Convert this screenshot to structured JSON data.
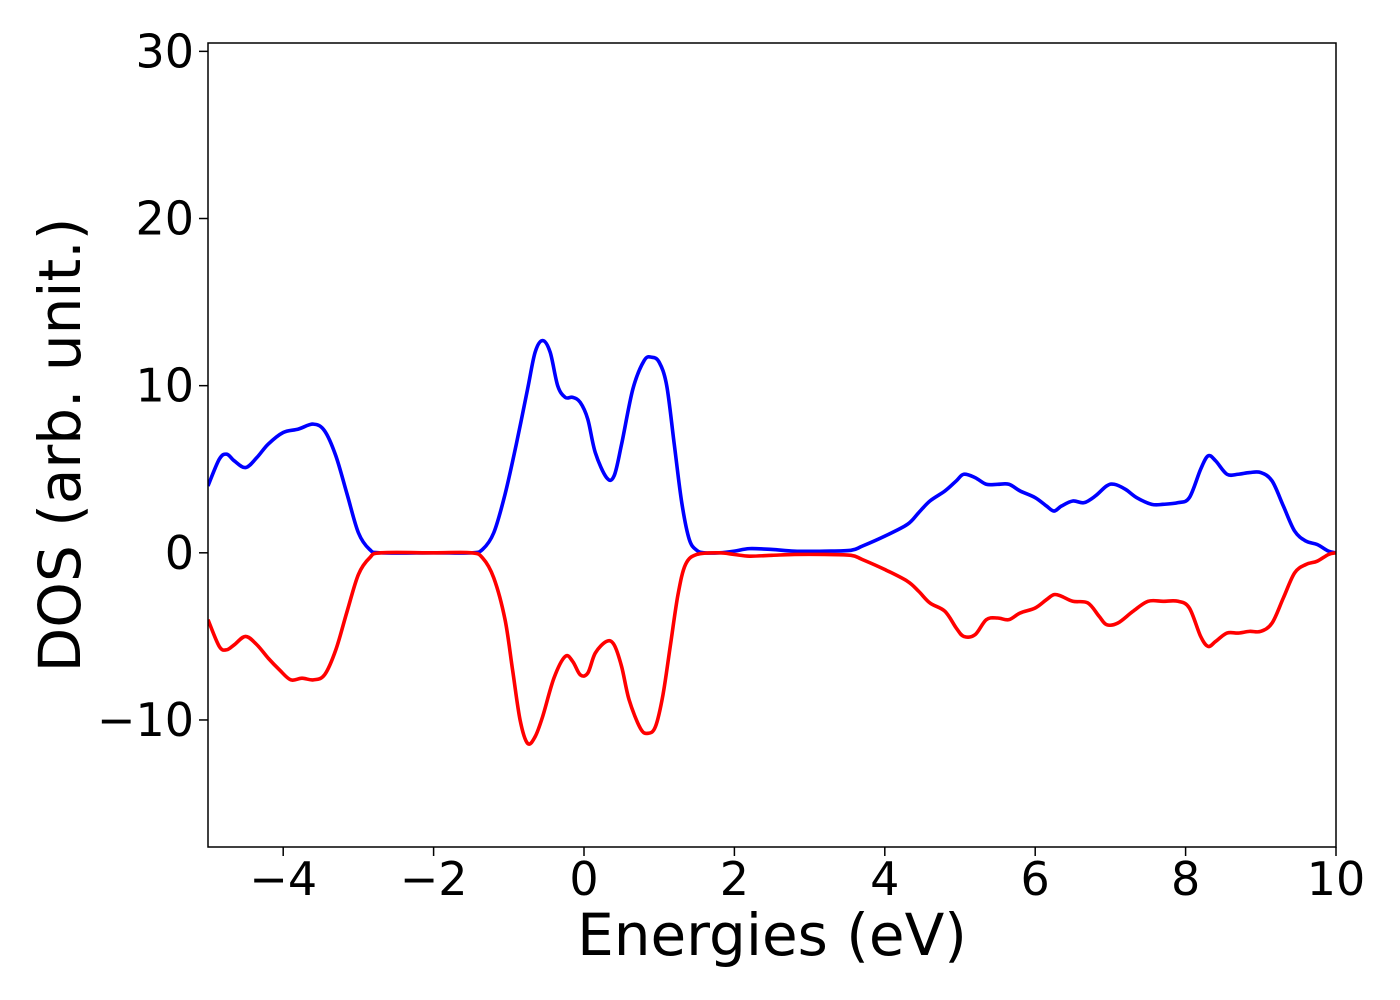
{
  "chart_data": {
    "type": "line",
    "title": "",
    "xlabel": "Energies (eV)",
    "ylabel": "DOS (arb. unit.)",
    "xlim": [
      -5,
      10
    ],
    "ylim": [
      -17.6,
      30.5
    ],
    "xticks": [
      -4,
      -2,
      0,
      2,
      4,
      6,
      8,
      10
    ],
    "xtick_labels": [
      "−4",
      "−2",
      "0",
      "2",
      "4",
      "6",
      "8",
      "10"
    ],
    "yticks": [
      -10,
      0,
      10,
      20,
      30
    ],
    "ytick_labels": [
      "−10",
      "0",
      "10",
      "20",
      "30"
    ],
    "grid": false,
    "legend": "none",
    "series": [
      {
        "color": "#0000ff",
        "points": [
          [
            -5.0,
            4.0
          ],
          [
            -4.85,
            5.6
          ],
          [
            -4.75,
            5.9
          ],
          [
            -4.65,
            5.5
          ],
          [
            -4.5,
            5.1
          ],
          [
            -4.35,
            5.7
          ],
          [
            -4.2,
            6.5
          ],
          [
            -4.0,
            7.2
          ],
          [
            -3.8,
            7.4
          ],
          [
            -3.6,
            7.7
          ],
          [
            -3.45,
            7.3
          ],
          [
            -3.3,
            5.8
          ],
          [
            -3.15,
            3.5
          ],
          [
            -3.0,
            1.2
          ],
          [
            -2.85,
            0.2
          ],
          [
            -2.7,
            0.0
          ],
          [
            -2.0,
            0.0
          ],
          [
            -1.5,
            0.0
          ],
          [
            -1.35,
            0.2
          ],
          [
            -1.2,
            1.2
          ],
          [
            -1.05,
            3.5
          ],
          [
            -0.9,
            6.5
          ],
          [
            -0.75,
            9.8
          ],
          [
            -0.65,
            12.0
          ],
          [
            -0.55,
            12.7
          ],
          [
            -0.45,
            12.0
          ],
          [
            -0.35,
            10.0
          ],
          [
            -0.25,
            9.3
          ],
          [
            -0.15,
            9.3
          ],
          [
            -0.05,
            9.0
          ],
          [
            0.05,
            8.0
          ],
          [
            0.15,
            6.0
          ],
          [
            0.3,
            4.5
          ],
          [
            0.4,
            4.6
          ],
          [
            0.5,
            6.5
          ],
          [
            0.65,
            9.8
          ],
          [
            0.8,
            11.5
          ],
          [
            0.9,
            11.7
          ],
          [
            1.0,
            11.4
          ],
          [
            1.1,
            10.0
          ],
          [
            1.2,
            6.5
          ],
          [
            1.3,
            3.0
          ],
          [
            1.4,
            0.8
          ],
          [
            1.5,
            0.15
          ],
          [
            1.6,
            0.0
          ],
          [
            1.8,
            0.0
          ],
          [
            2.0,
            0.1
          ],
          [
            2.2,
            0.25
          ],
          [
            2.5,
            0.2
          ],
          [
            2.8,
            0.1
          ],
          [
            3.2,
            0.1
          ],
          [
            3.55,
            0.15
          ],
          [
            3.7,
            0.4
          ],
          [
            4.0,
            1.0
          ],
          [
            4.3,
            1.7
          ],
          [
            4.45,
            2.4
          ],
          [
            4.6,
            3.1
          ],
          [
            4.8,
            3.7
          ],
          [
            4.95,
            4.3
          ],
          [
            5.05,
            4.7
          ],
          [
            5.2,
            4.5
          ],
          [
            5.35,
            4.1
          ],
          [
            5.5,
            4.1
          ],
          [
            5.65,
            4.1
          ],
          [
            5.8,
            3.7
          ],
          [
            6.0,
            3.3
          ],
          [
            6.15,
            2.8
          ],
          [
            6.25,
            2.5
          ],
          [
            6.35,
            2.8
          ],
          [
            6.5,
            3.1
          ],
          [
            6.65,
            3.0
          ],
          [
            6.8,
            3.4
          ],
          [
            6.95,
            4.0
          ],
          [
            7.05,
            4.1
          ],
          [
            7.2,
            3.8
          ],
          [
            7.35,
            3.3
          ],
          [
            7.55,
            2.9
          ],
          [
            7.7,
            2.9
          ],
          [
            7.9,
            3.0
          ],
          [
            8.05,
            3.3
          ],
          [
            8.2,
            5.0
          ],
          [
            8.3,
            5.8
          ],
          [
            8.4,
            5.5
          ],
          [
            8.55,
            4.7
          ],
          [
            8.7,
            4.7
          ],
          [
            8.85,
            4.8
          ],
          [
            9.0,
            4.8
          ],
          [
            9.15,
            4.3
          ],
          [
            9.3,
            2.8
          ],
          [
            9.45,
            1.3
          ],
          [
            9.6,
            0.7
          ],
          [
            9.75,
            0.5
          ],
          [
            9.9,
            0.1
          ],
          [
            10.0,
            0.0
          ]
        ]
      },
      {
        "color": "#ff0000",
        "points": [
          [
            -5.0,
            -4.0
          ],
          [
            -4.85,
            -5.6
          ],
          [
            -4.75,
            -5.8
          ],
          [
            -4.65,
            -5.5
          ],
          [
            -4.5,
            -5.0
          ],
          [
            -4.35,
            -5.5
          ],
          [
            -4.2,
            -6.3
          ],
          [
            -4.05,
            -7.0
          ],
          [
            -3.9,
            -7.6
          ],
          [
            -3.75,
            -7.5
          ],
          [
            -3.6,
            -7.6
          ],
          [
            -3.45,
            -7.3
          ],
          [
            -3.3,
            -5.8
          ],
          [
            -3.15,
            -3.5
          ],
          [
            -3.0,
            -1.3
          ],
          [
            -2.85,
            -0.3
          ],
          [
            -2.7,
            0.0
          ],
          [
            -2.0,
            0.0
          ],
          [
            -1.5,
            0.0
          ],
          [
            -1.35,
            -0.3
          ],
          [
            -1.2,
            -1.5
          ],
          [
            -1.05,
            -4.0
          ],
          [
            -0.95,
            -7.0
          ],
          [
            -0.85,
            -10.0
          ],
          [
            -0.75,
            -11.4
          ],
          [
            -0.65,
            -11.0
          ],
          [
            -0.55,
            -9.8
          ],
          [
            -0.4,
            -7.5
          ],
          [
            -0.25,
            -6.2
          ],
          [
            -0.15,
            -6.5
          ],
          [
            -0.05,
            -7.3
          ],
          [
            0.05,
            -7.2
          ],
          [
            0.15,
            -6.0
          ],
          [
            0.3,
            -5.3
          ],
          [
            0.4,
            -5.5
          ],
          [
            0.5,
            -6.8
          ],
          [
            0.6,
            -8.8
          ],
          [
            0.75,
            -10.5
          ],
          [
            0.85,
            -10.8
          ],
          [
            0.95,
            -10.4
          ],
          [
            1.05,
            -8.5
          ],
          [
            1.15,
            -5.5
          ],
          [
            1.25,
            -2.5
          ],
          [
            1.35,
            -0.7
          ],
          [
            1.5,
            -0.1
          ],
          [
            1.8,
            0.0
          ],
          [
            2.0,
            -0.1
          ],
          [
            2.2,
            -0.2
          ],
          [
            2.5,
            -0.15
          ],
          [
            2.8,
            -0.1
          ],
          [
            3.2,
            -0.1
          ],
          [
            3.55,
            -0.15
          ],
          [
            3.7,
            -0.4
          ],
          [
            4.0,
            -1.0
          ],
          [
            4.3,
            -1.7
          ],
          [
            4.45,
            -2.3
          ],
          [
            4.6,
            -3.0
          ],
          [
            4.8,
            -3.5
          ],
          [
            4.95,
            -4.5
          ],
          [
            5.05,
            -5.0
          ],
          [
            5.2,
            -4.9
          ],
          [
            5.35,
            -4.0
          ],
          [
            5.5,
            -3.9
          ],
          [
            5.65,
            -4.0
          ],
          [
            5.8,
            -3.6
          ],
          [
            6.0,
            -3.3
          ],
          [
            6.15,
            -2.8
          ],
          [
            6.25,
            -2.5
          ],
          [
            6.35,
            -2.6
          ],
          [
            6.5,
            -2.9
          ],
          [
            6.7,
            -3.0
          ],
          [
            6.85,
            -3.8
          ],
          [
            6.95,
            -4.3
          ],
          [
            7.1,
            -4.2
          ],
          [
            7.3,
            -3.5
          ],
          [
            7.5,
            -2.9
          ],
          [
            7.7,
            -2.9
          ],
          [
            7.9,
            -2.9
          ],
          [
            8.05,
            -3.3
          ],
          [
            8.2,
            -5.0
          ],
          [
            8.3,
            -5.6
          ],
          [
            8.4,
            -5.3
          ],
          [
            8.55,
            -4.8
          ],
          [
            8.7,
            -4.8
          ],
          [
            8.85,
            -4.7
          ],
          [
            9.0,
            -4.7
          ],
          [
            9.15,
            -4.2
          ],
          [
            9.3,
            -2.7
          ],
          [
            9.45,
            -1.2
          ],
          [
            9.6,
            -0.7
          ],
          [
            9.75,
            -0.5
          ],
          [
            9.9,
            -0.1
          ],
          [
            10.0,
            0.0
          ]
        ]
      }
    ]
  }
}
